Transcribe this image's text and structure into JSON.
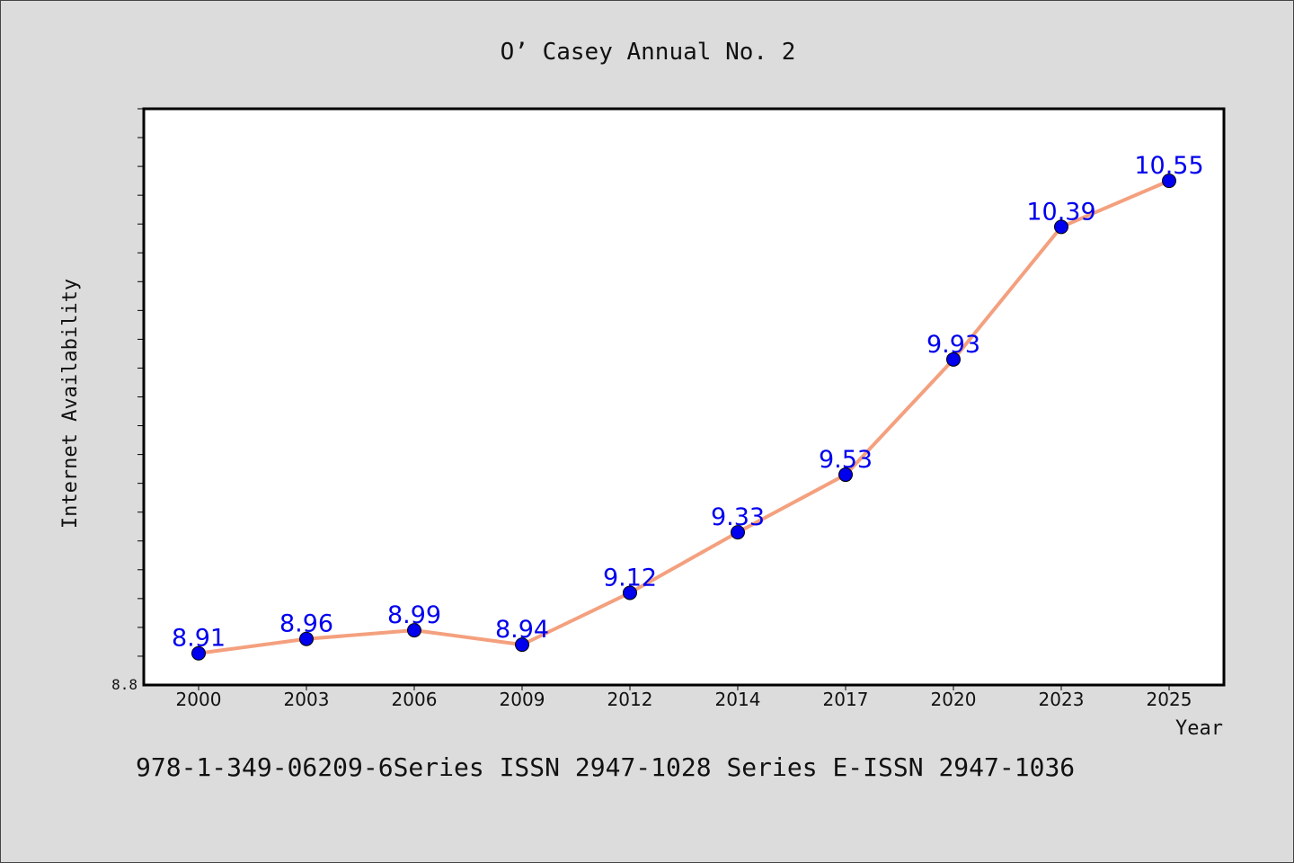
{
  "chart_data": {
    "type": "line",
    "title": "O’ Casey Annual No. 2",
    "xlabel": "Year",
    "ylabel": "Internet Availability",
    "ylim": [
      8.8,
      10.8
    ],
    "y_tick_labels": [
      "8.8"
    ],
    "grid": false,
    "categories": [
      "2000",
      "2003",
      "2006",
      "2009",
      "2012",
      "2014",
      "2017",
      "2020",
      "2023",
      "2025"
    ],
    "series": [
      {
        "values": [
          8.91,
          8.96,
          8.99,
          8.94,
          9.12,
          9.33,
          9.53,
          9.93,
          10.39,
          10.55
        ],
        "labels": [
          "8.91",
          "8.96",
          "8.99",
          "8.94",
          "9.12",
          "9.33",
          "9.53",
          "9.93",
          "10.39",
          "10.55"
        ]
      }
    ],
    "line_color": "#f4a07e",
    "marker_color": "#0000ee",
    "label_color": "#0000ee"
  },
  "footer": {
    "text": "978-1-349-06209-6Series ISSN 2947-1028 Series E-ISSN 2947-1036"
  }
}
